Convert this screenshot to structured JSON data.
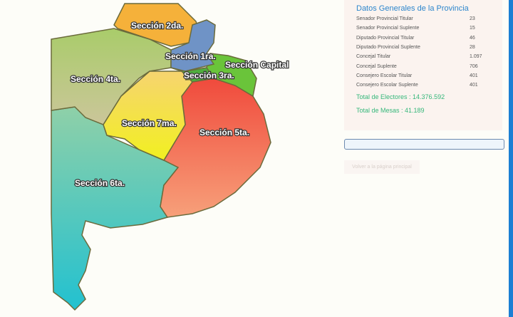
{
  "map": {
    "sections": [
      {
        "id": "2da",
        "label": "Sección 2da.",
        "color": "#f5b13a"
      },
      {
        "id": "1ra",
        "label": "Sección 1ra.",
        "color": "#6f93c6"
      },
      {
        "id": "capital",
        "label": "Sección Capital",
        "color": "#6ac43a"
      },
      {
        "id": "3ra",
        "label": "Sección 3ra.",
        "color": "#4fae3e"
      },
      {
        "id": "4ta",
        "label": "Sección 4ta.",
        "color": "#b9c97a"
      },
      {
        "id": "7ma",
        "label": "Sección 7ma.",
        "color": "#f4e442"
      },
      {
        "id": "5ta",
        "label": "Sección 5ta.",
        "color": "#ef5e4a"
      },
      {
        "id": "6ta",
        "label": "Sección  6ta.",
        "color": "#5cc4b8"
      }
    ]
  },
  "panel": {
    "title": "Datos Generales de la Provincia",
    "rows": [
      {
        "label": "Senador Provincial Titular",
        "value": "23"
      },
      {
        "label": "Senador Provincial Suplente",
        "value": "15"
      },
      {
        "label": "Diputado Provincial Titular",
        "value": "46"
      },
      {
        "label": "Diputado Provincial Suplente",
        "value": "28"
      },
      {
        "label": "Concejal Titular",
        "value": "1.097"
      },
      {
        "label": "Concejal Suplente",
        "value": "706"
      },
      {
        "label": "Consejero Escolar Titular",
        "value": "401"
      },
      {
        "label": "Consejero Escolar Suplente",
        "value": "401"
      }
    ],
    "total_electores": "Total de Electores : 14.376.592",
    "total_mesas": "Total de Mesas : 41.189"
  },
  "search": {
    "value": ""
  },
  "back_button": "Volver a la página principal",
  "accent": "#1b7fd4"
}
